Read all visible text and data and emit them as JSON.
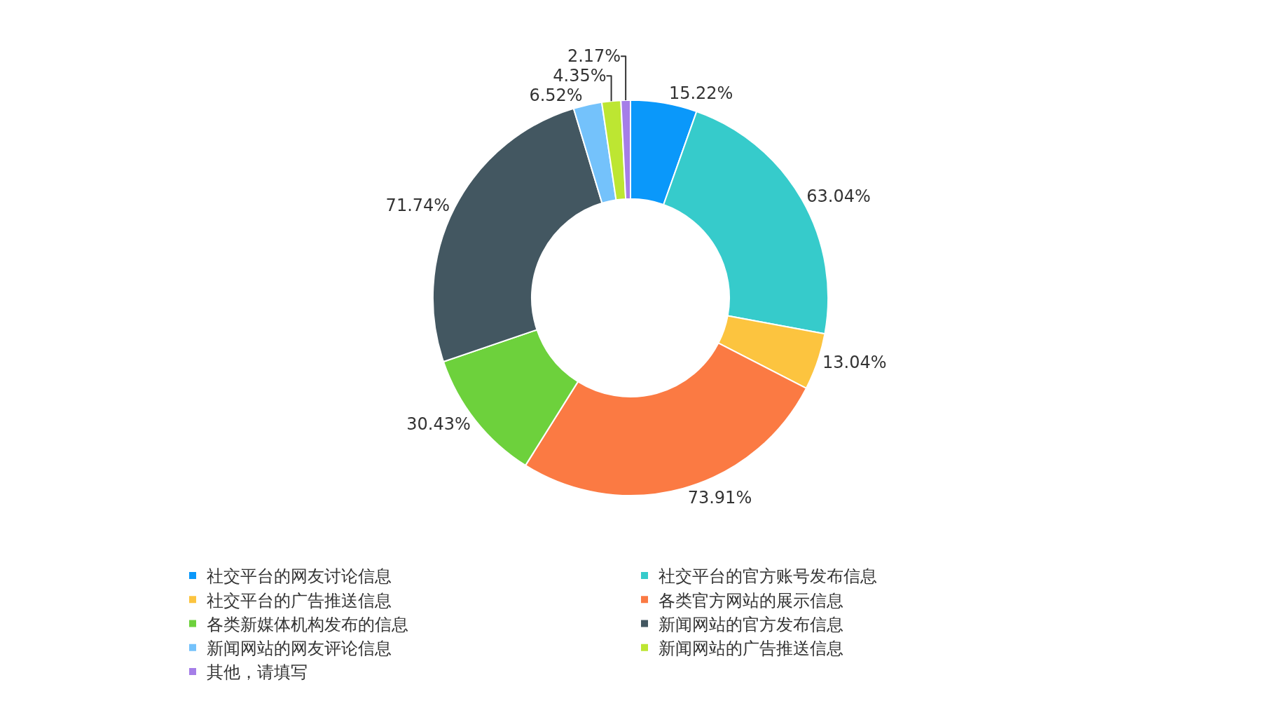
{
  "chart_data": {
    "type": "donut",
    "categories": [
      "社交平台的网友讨论信息",
      "社交平台的官方账号发布信息",
      "社交平台的广告推送信息",
      "各类官方网站的展示信息",
      "各类新媒体机构发布的信息",
      "新闻网站的官方发布信息",
      "新闻网站的网友评论信息",
      "新闻网站的广告推送信息",
      "其他，请填写"
    ],
    "values": [
      15.22,
      63.04,
      13.04,
      73.91,
      30.43,
      71.74,
      6.52,
      4.35,
      2.17
    ],
    "value_labels": [
      "15.22%",
      "63.04%",
      "13.04%",
      "73.91%",
      "30.43%",
      "71.74%",
      "6.52%",
      "4.35%",
      "2.17%"
    ],
    "colors": [
      "#0a98fa",
      "#36cbcb",
      "#fcc43f",
      "#fb7a43",
      "#6dd13c",
      "#435761",
      "#74c2fb",
      "#bde632",
      "#a57ee8"
    ],
    "legend": "bottom"
  }
}
